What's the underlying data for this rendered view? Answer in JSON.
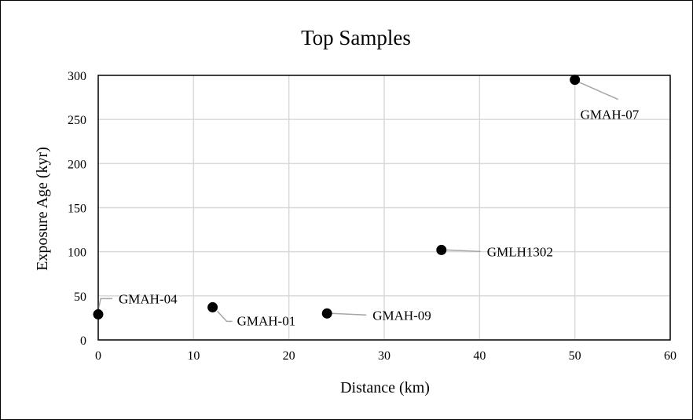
{
  "chart_data": {
    "type": "scatter",
    "title": "Top Samples",
    "xlabel": "Distance (km)",
    "ylabel": "Exposure Age (kyr)",
    "xlim": [
      0,
      60
    ],
    "ylim": [
      0,
      300
    ],
    "xticks": [
      0,
      10,
      20,
      30,
      40,
      50,
      60
    ],
    "yticks": [
      0,
      50,
      100,
      150,
      200,
      250,
      300
    ],
    "grid": true,
    "legend": "none",
    "marker_color": "#000000",
    "points": [
      {
        "label": "GMAH-04",
        "x": 0,
        "y": 29,
        "label_pos": "upper-right"
      },
      {
        "label": "GMAH-01",
        "x": 12,
        "y": 37,
        "label_pos": "lower-right"
      },
      {
        "label": "GMAH-09",
        "x": 24,
        "y": 30,
        "label_pos": "right"
      },
      {
        "label": "GMLH1302",
        "x": 36,
        "y": 102,
        "label_pos": "right"
      },
      {
        "label": "GMAH-07",
        "x": 50,
        "y": 295,
        "label_pos": "lower-right"
      }
    ]
  }
}
